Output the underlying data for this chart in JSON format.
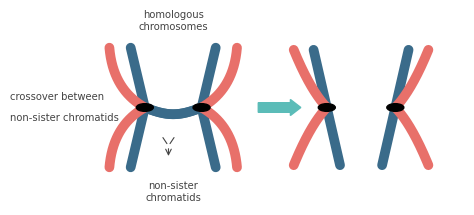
{
  "bg_color": "#ffffff",
  "pink": "#e8706a",
  "blue": "#3a6b8a",
  "teal_arrow": "#5bbcb8",
  "text_color": "#444444",
  "label_top": "homologous\nchromosomes",
  "label_left1": "crossover between",
  "label_left2": "non-sister chromatids",
  "label_bottom": "non-sister\nchromatids",
  "lw": 7,
  "dot_r": 0.018,
  "figsize": [
    4.74,
    2.15
  ],
  "dpi": 100
}
